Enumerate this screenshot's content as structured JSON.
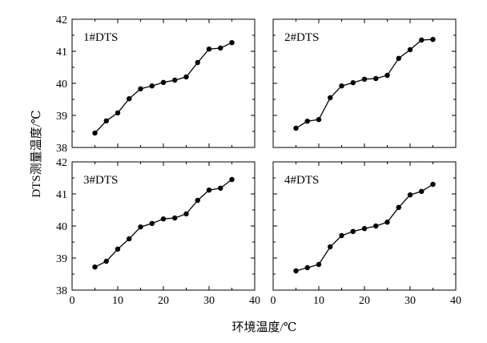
{
  "figure": {
    "xlabel": "环境温度/℃",
    "ylabel": "DTS测量温度/℃"
  },
  "chart_data": [
    {
      "type": "line",
      "panel_label": "1#DTS",
      "xlim": [
        0,
        40
      ],
      "ylim": [
        38,
        42
      ],
      "x_ticks": [
        "0",
        "10",
        "20",
        "30",
        "40"
      ],
      "y_ticks": [
        "38",
        "39",
        "40",
        "41",
        "42"
      ],
      "series": [
        {
          "x": [
            5,
            7.5,
            10,
            12.5,
            15,
            17.5,
            20,
            22.5,
            25,
            27.5,
            30,
            32.5,
            35
          ],
          "y": [
            38.45,
            38.83,
            39.08,
            39.52,
            39.83,
            39.92,
            40.03,
            40.1,
            40.2,
            40.65,
            41.07,
            41.1,
            41.27
          ]
        }
      ]
    },
    {
      "type": "line",
      "panel_label": "2#DTS",
      "xlim": [
        0,
        40
      ],
      "ylim": [
        38,
        42
      ],
      "x_ticks": [
        "0",
        "10",
        "20",
        "30",
        "40"
      ],
      "y_ticks": [],
      "series": [
        {
          "x": [
            5,
            7.5,
            10,
            12.5,
            15,
            17.5,
            20,
            22.5,
            25,
            27.5,
            30,
            32.5,
            35
          ],
          "y": [
            38.6,
            38.82,
            38.87,
            39.55,
            39.92,
            40.02,
            40.13,
            40.15,
            40.25,
            40.78,
            41.05,
            41.35,
            41.37
          ]
        }
      ]
    },
    {
      "type": "line",
      "panel_label": "3#DTS",
      "xlim": [
        0,
        40
      ],
      "ylim": [
        38,
        42
      ],
      "x_ticks": [
        "0",
        "10",
        "20",
        "30",
        "40"
      ],
      "y_ticks": [
        "38",
        "39",
        "40",
        "41",
        "42"
      ],
      "series": [
        {
          "x": [
            5,
            7.5,
            10,
            12.5,
            15,
            17.5,
            20,
            22.5,
            25,
            27.5,
            30,
            32.5,
            35
          ],
          "y": [
            38.72,
            38.9,
            39.28,
            39.6,
            39.97,
            40.08,
            40.22,
            40.25,
            40.38,
            40.8,
            41.12,
            41.18,
            41.45
          ]
        }
      ]
    },
    {
      "type": "line",
      "panel_label": "4#DTS",
      "xlim": [
        0,
        40
      ],
      "ylim": [
        38,
        42
      ],
      "x_ticks": [
        "0",
        "10",
        "20",
        "30",
        "40"
      ],
      "y_ticks": [],
      "series": [
        {
          "x": [
            5,
            7.5,
            10,
            12.5,
            15,
            17.5,
            20,
            22.5,
            25,
            27.5,
            30,
            32.5,
            35
          ],
          "y": [
            38.6,
            38.7,
            38.8,
            39.35,
            39.7,
            39.83,
            39.92,
            40.0,
            40.12,
            40.58,
            40.97,
            41.08,
            41.3
          ]
        }
      ]
    }
  ]
}
